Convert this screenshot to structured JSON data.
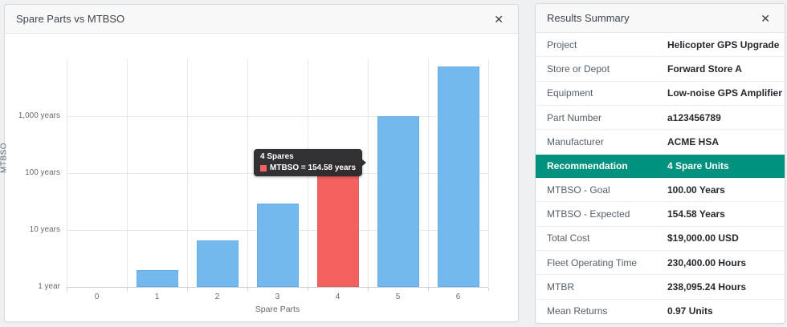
{
  "chart_panel": {
    "title": "Spare Parts vs MTBSO",
    "close_icon": "✕"
  },
  "chart_data": {
    "type": "bar",
    "title": "Spare Parts vs MTBSO",
    "xlabel": "Spare Parts",
    "ylabel": "MTBSO",
    "categories": [
      "0",
      "1",
      "2",
      "3",
      "4",
      "5",
      "6"
    ],
    "series_name": "MTBSO",
    "values": [
      0.79,
      1.95,
      6.6,
      28.8,
      154.58,
      1003,
      7400
    ],
    "yscale": "log",
    "ylim": [
      1,
      10000
    ],
    "yticks": [
      {
        "value": 1,
        "label": "1 year"
      },
      {
        "value": 10,
        "label": "10 years"
      },
      {
        "value": 100,
        "label": "100 years"
      },
      {
        "value": 1000,
        "label": "1,000 years"
      }
    ],
    "grid": true,
    "legend": "none",
    "bar_color": "#74b9ee",
    "highlight_index": 4,
    "highlight_color": "#f4615f",
    "tooltip": {
      "title": "4 Spares",
      "text": "MTBSO = 154.58 years",
      "swatch_color": "#f4615f"
    }
  },
  "summary_panel": {
    "title": "Results Summary",
    "close_icon": "✕",
    "highlight_color": "#00917f",
    "rows": [
      {
        "label": "Project",
        "value": "Helicopter GPS Upgrade",
        "highlight": false
      },
      {
        "label": "Store or Depot",
        "value": "Forward Store A",
        "highlight": false
      },
      {
        "label": "Equipment",
        "value": "Low-noise GPS Amplifier",
        "highlight": false
      },
      {
        "label": "Part Number",
        "value": "a123456789",
        "highlight": false
      },
      {
        "label": "Manufacturer",
        "value": "ACME HSA",
        "highlight": false
      },
      {
        "label": "Recommendation",
        "value": "4 Spare Units",
        "highlight": true
      },
      {
        "label": "MTBSO - Goal",
        "value": "100.00 Years",
        "highlight": false
      },
      {
        "label": "MTBSO - Expected",
        "value": "154.58 Years",
        "highlight": false
      },
      {
        "label": "Total Cost",
        "value": "$19,000.00 USD",
        "highlight": false
      },
      {
        "label": "Fleet Operating Time",
        "value": "230,400.00 Hours",
        "highlight": false
      },
      {
        "label": "MTBR",
        "value": "238,095.24 Hours",
        "highlight": false
      },
      {
        "label": "Mean Returns",
        "value": "0.97 Units",
        "highlight": false
      }
    ]
  }
}
